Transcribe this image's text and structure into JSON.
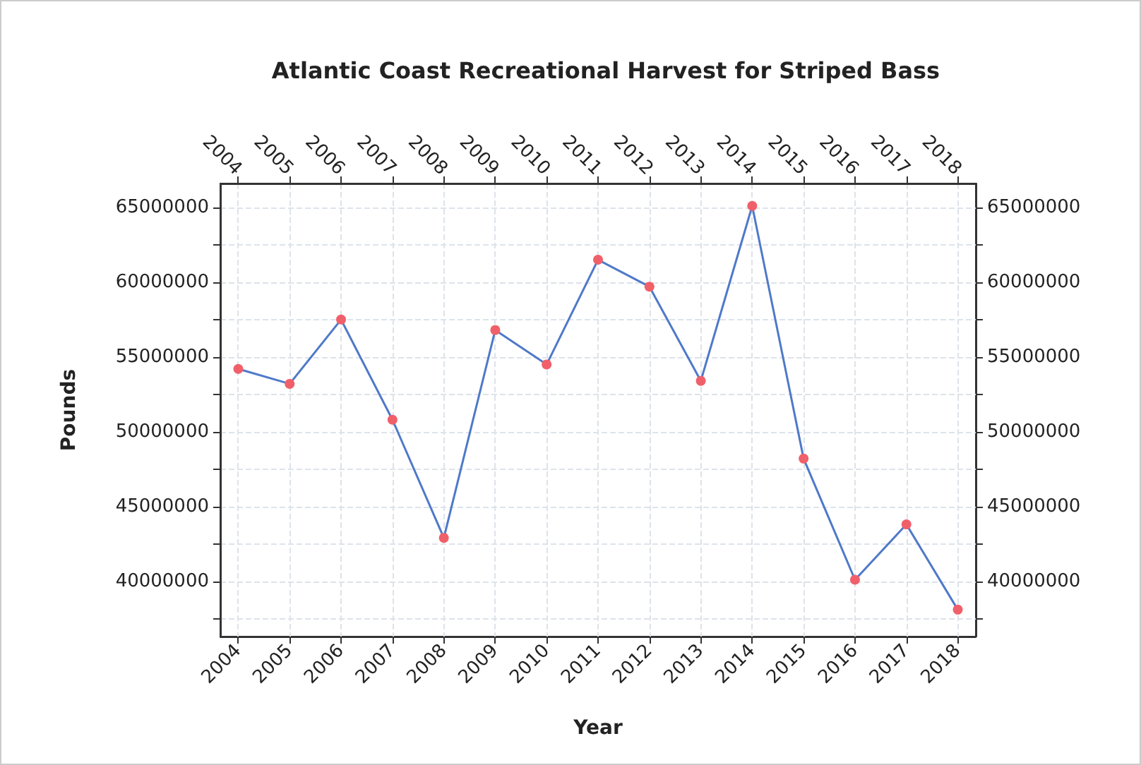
{
  "chart_data": {
    "type": "line",
    "title": "Atlantic Coast Recreational Harvest for Striped Bass",
    "xlabel": "Year",
    "ylabel": "Pounds",
    "x": [
      2004,
      2005,
      2006,
      2007,
      2008,
      2009,
      2010,
      2011,
      2012,
      2013,
      2014,
      2015,
      2016,
      2017,
      2018
    ],
    "series": [
      {
        "color": "#4f79c9",
        "colors": [
          "#f0606a",
          "#f0606a",
          "#f0606a",
          "#f0606a",
          "#f0606a",
          "#f0606a",
          "#f0606a",
          "#f0606a",
          "#f0606a",
          "#f0606a",
          "#f0606a",
          "#f0606a",
          "#f0606a",
          "#f0606a",
          "#f0606a"
        ],
        "values": [
          54200000,
          53200000,
          57500000,
          50800000,
          42900000,
          56800000,
          54500000,
          61500000,
          59700000,
          53400000,
          65100000,
          48200000,
          40100000,
          43800000,
          38100000
        ]
      }
    ],
    "xlim": [
      2003.65,
      2018.35
    ],
    "xticks": [
      2004,
      2005,
      2006,
      2007,
      2008,
      2009,
      2010,
      2011,
      2012,
      2013,
      2014,
      2015,
      2016,
      2017,
      2018
    ],
    "x2lim": [
      2003.65,
      2018.35
    ],
    "x2ticks": [
      2004,
      2005,
      2006,
      2007,
      2008,
      2009,
      2010,
      2011,
      2012,
      2013,
      2014,
      2015,
      2016,
      2017,
      2018
    ],
    "ylim": [
      36300000,
      66600000
    ],
    "yticks": [
      {
        "value": 37500000,
        "label": null
      },
      40000000,
      {
        "value": 42500000,
        "label": null
      },
      45000000,
      {
        "value": 47500000,
        "label": null
      },
      50000000,
      {
        "value": 52500000,
        "label": null
      },
      55000000,
      {
        "value": 57500000,
        "label": null
      },
      60000000,
      {
        "value": 62500000,
        "label": null
      },
      65000000
    ],
    "y2lim": [
      36300000,
      66600000
    ],
    "y2ticks": [
      {
        "value": 37500000,
        "label": null
      },
      40000000,
      {
        "value": 42500000,
        "label": null
      },
      45000000,
      {
        "value": 47500000,
        "label": null
      },
      50000000,
      {
        "value": 52500000,
        "label": null
      },
      55000000,
      {
        "value": 57500000,
        "label": null
      },
      60000000,
      {
        "value": 62500000,
        "label": null
      },
      65000000
    ],
    "grid": true,
    "marker": "circle",
    "line_style": "solid"
  }
}
